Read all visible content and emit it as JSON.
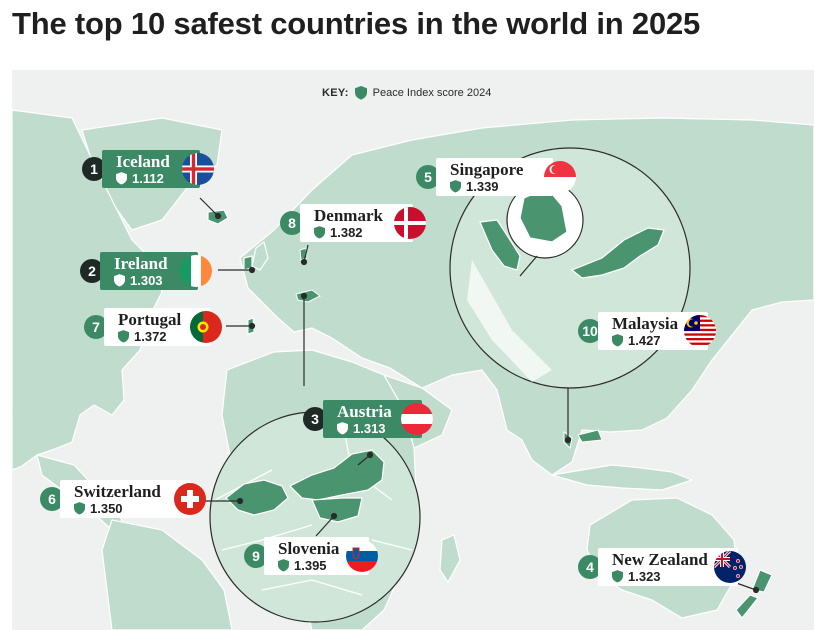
{
  "title": "The top 10 safest countries in the world in 2025",
  "key": {
    "label": "KEY:",
    "text": "Peace Index score 2024"
  },
  "colors": {
    "dark_card": "#3b8a65",
    "land": "#bfdccd",
    "highlight": "#4a9470",
    "ocean": "#eef1ef"
  },
  "countries": [
    {
      "rank": "1",
      "name": "Iceland",
      "score": "1.112",
      "flag": "flag-iceland"
    },
    {
      "rank": "2",
      "name": "Ireland",
      "score": "1.303",
      "flag": "flag-ireland"
    },
    {
      "rank": "3",
      "name": "Austria",
      "score": "1.313",
      "flag": "flag-austria"
    },
    {
      "rank": "4",
      "name": "New Zealand",
      "score": "1.323",
      "flag": "flag-new-zealand"
    },
    {
      "rank": "5",
      "name": "Singapore",
      "score": "1.339",
      "flag": "flag-singapore"
    },
    {
      "rank": "6",
      "name": "Switzerland",
      "score": "1.350",
      "flag": "flag-switzerland"
    },
    {
      "rank": "7",
      "name": "Portugal",
      "score": "1.372",
      "flag": "flag-portugal"
    },
    {
      "rank": "8",
      "name": "Denmark",
      "score": "1.382",
      "flag": "flag-denmark"
    },
    {
      "rank": "9",
      "name": "Slovenia",
      "score": "1.395",
      "flag": "flag-slovenia"
    },
    {
      "rank": "10",
      "name": "Malaysia",
      "score": "1.427",
      "flag": "flag-malaysia"
    }
  ]
}
